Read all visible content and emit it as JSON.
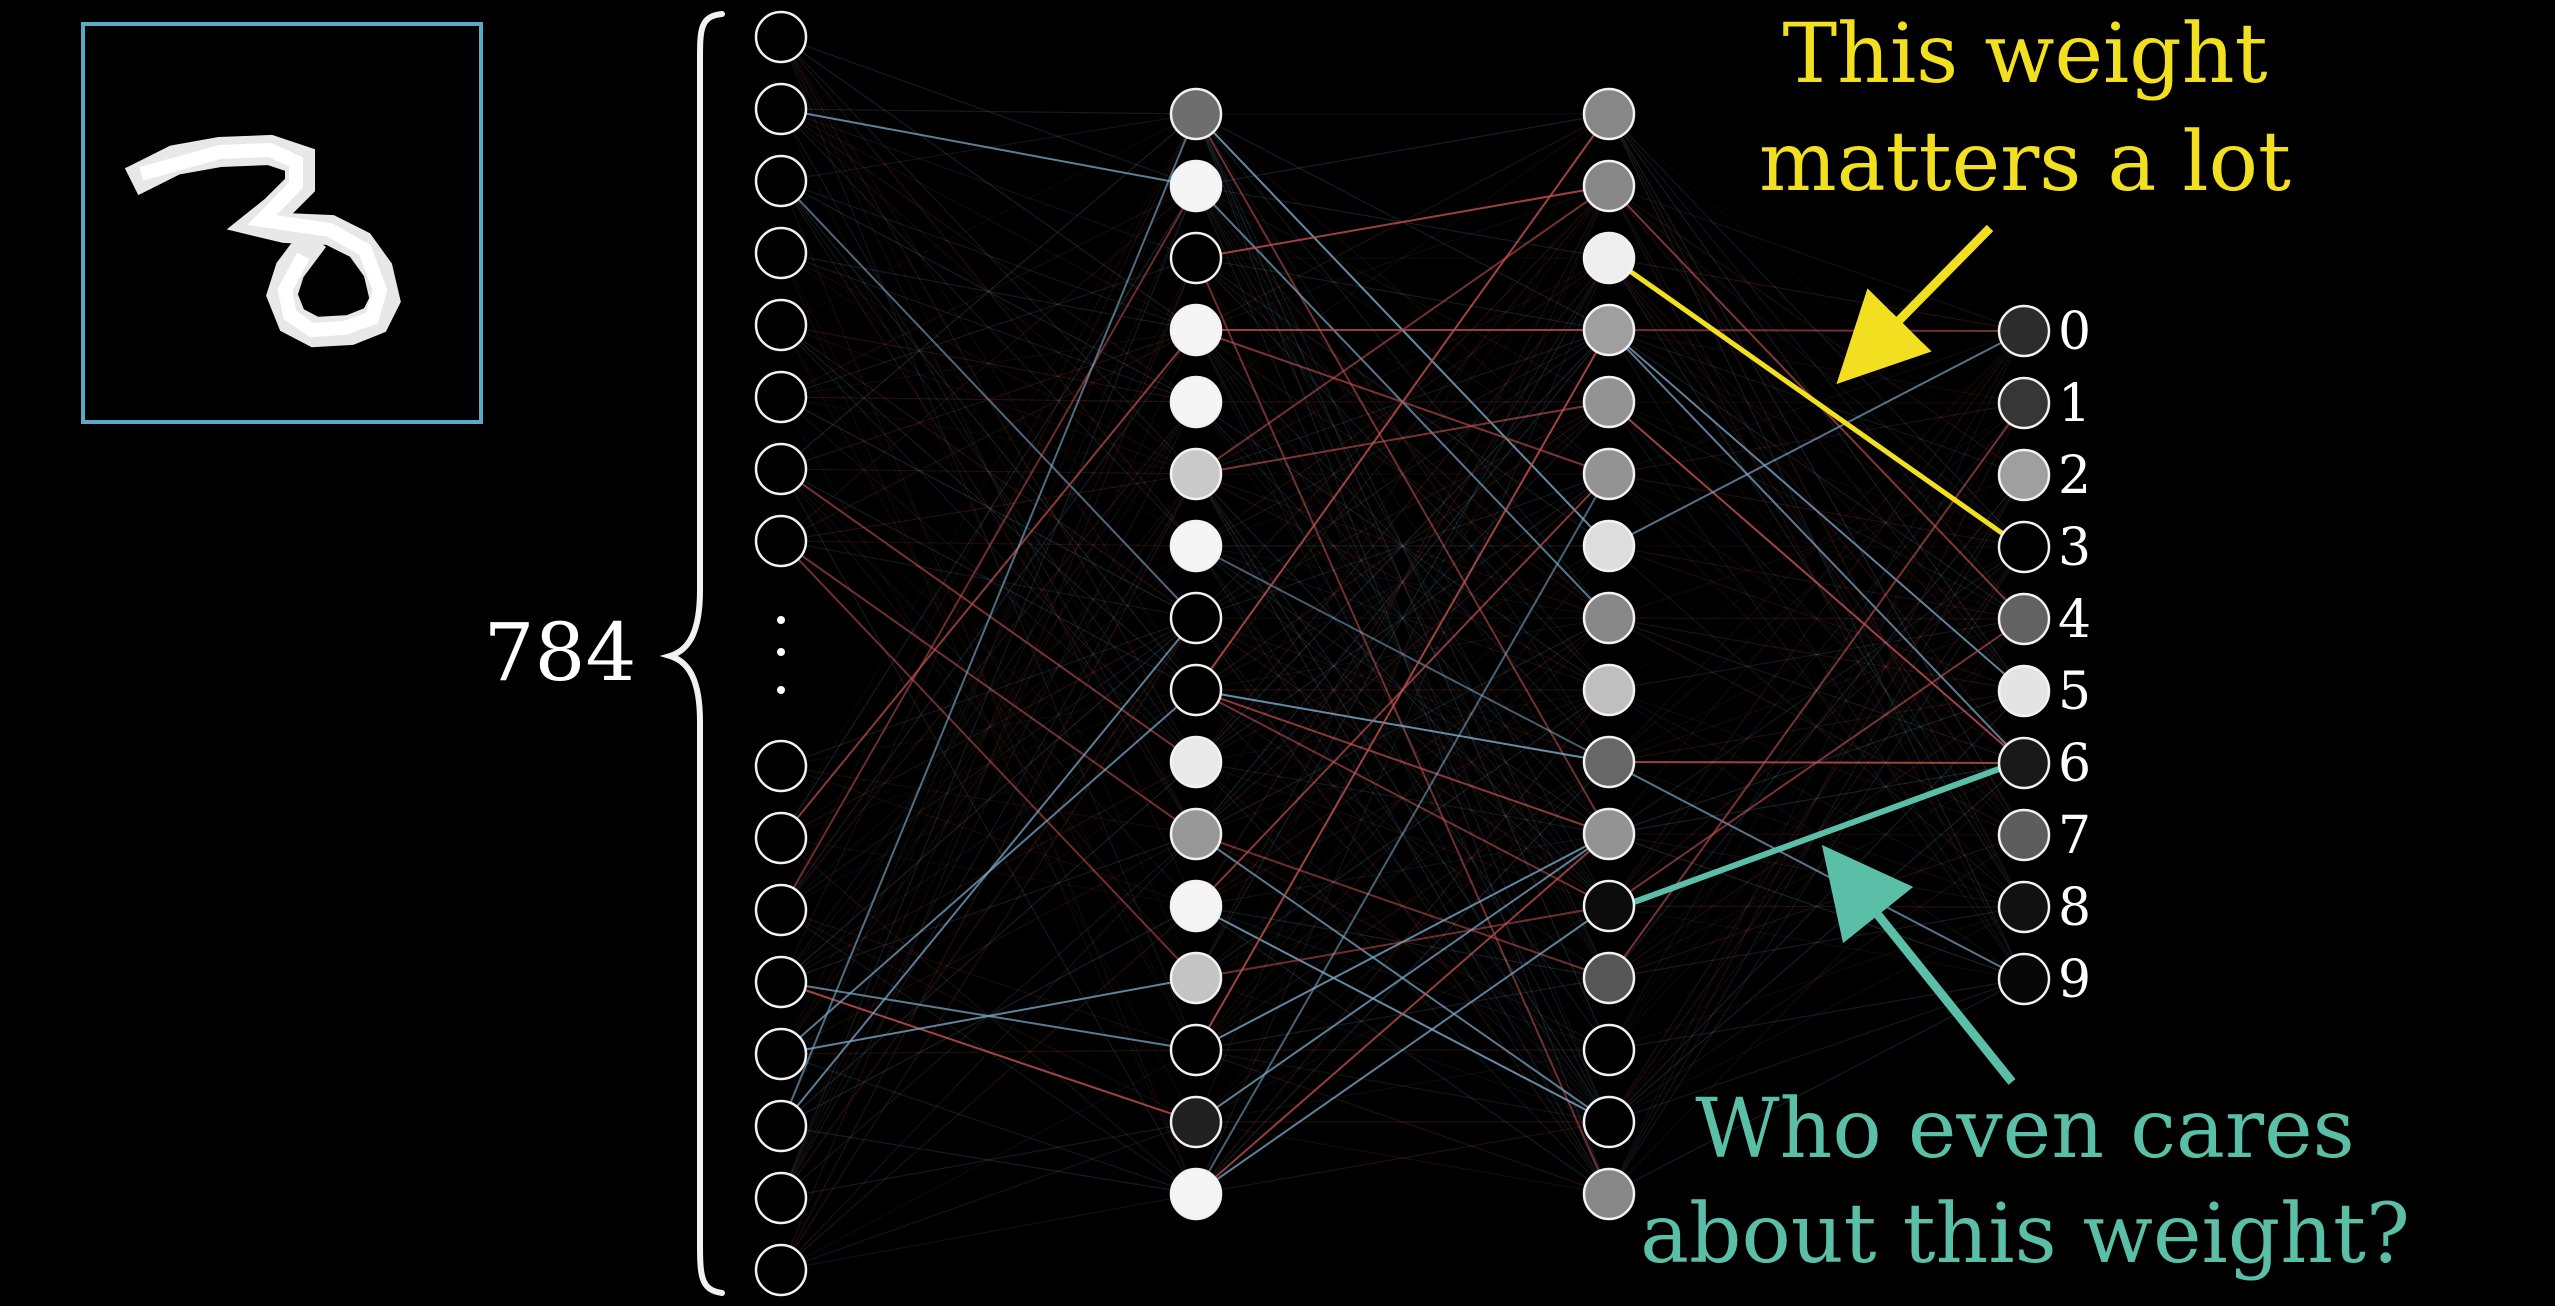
{
  "colors": {
    "background": "#000000",
    "node_stroke": "#f2f2f2",
    "input_frame": "#5ba9c9",
    "highlight_weight": "#f2e020",
    "ignored_weight": "#5bbfa8",
    "label_text": "#ffffff",
    "positive_edge": "#7aa8c8",
    "negative_edge": "#c0504d"
  },
  "input_image": {
    "digit_shown": "3"
  },
  "input_layer": {
    "count_label": "784",
    "ellipsis": "⋮",
    "top_node_count": 8,
    "bottom_node_count": 8
  },
  "hidden_layer_1": {
    "activations": [
      0.45,
      1.0,
      0.0,
      1.0,
      1.0,
      0.82,
      1.0,
      0.0,
      0.0,
      0.95,
      0.62,
      1.0,
      0.8,
      0.0,
      0.13,
      1.0
    ]
  },
  "hidden_layer_2": {
    "activations": [
      0.55,
      0.55,
      0.97,
      0.65,
      0.6,
      0.6,
      0.9,
      0.55,
      0.78,
      0.42,
      0.6,
      0.05,
      0.35,
      0.0,
      0.0,
      0.55
    ]
  },
  "output_layer": {
    "labels": [
      "0",
      "1",
      "2",
      "3",
      "4",
      "5",
      "6",
      "7",
      "8",
      "9"
    ],
    "activations": [
      0.18,
      0.22,
      0.65,
      0.0,
      0.4,
      0.93,
      0.1,
      0.38,
      0.07,
      0.03
    ]
  },
  "annotations": {
    "important_weight": {
      "line1": "This weight",
      "line2": "matters a lot",
      "from_hidden2_index": 2,
      "to_output_index": 3
    },
    "unimportant_weight": {
      "line1": "Who even cares",
      "line2": "about this weight?",
      "from_hidden2_index": 11,
      "to_output_index": 6
    }
  }
}
